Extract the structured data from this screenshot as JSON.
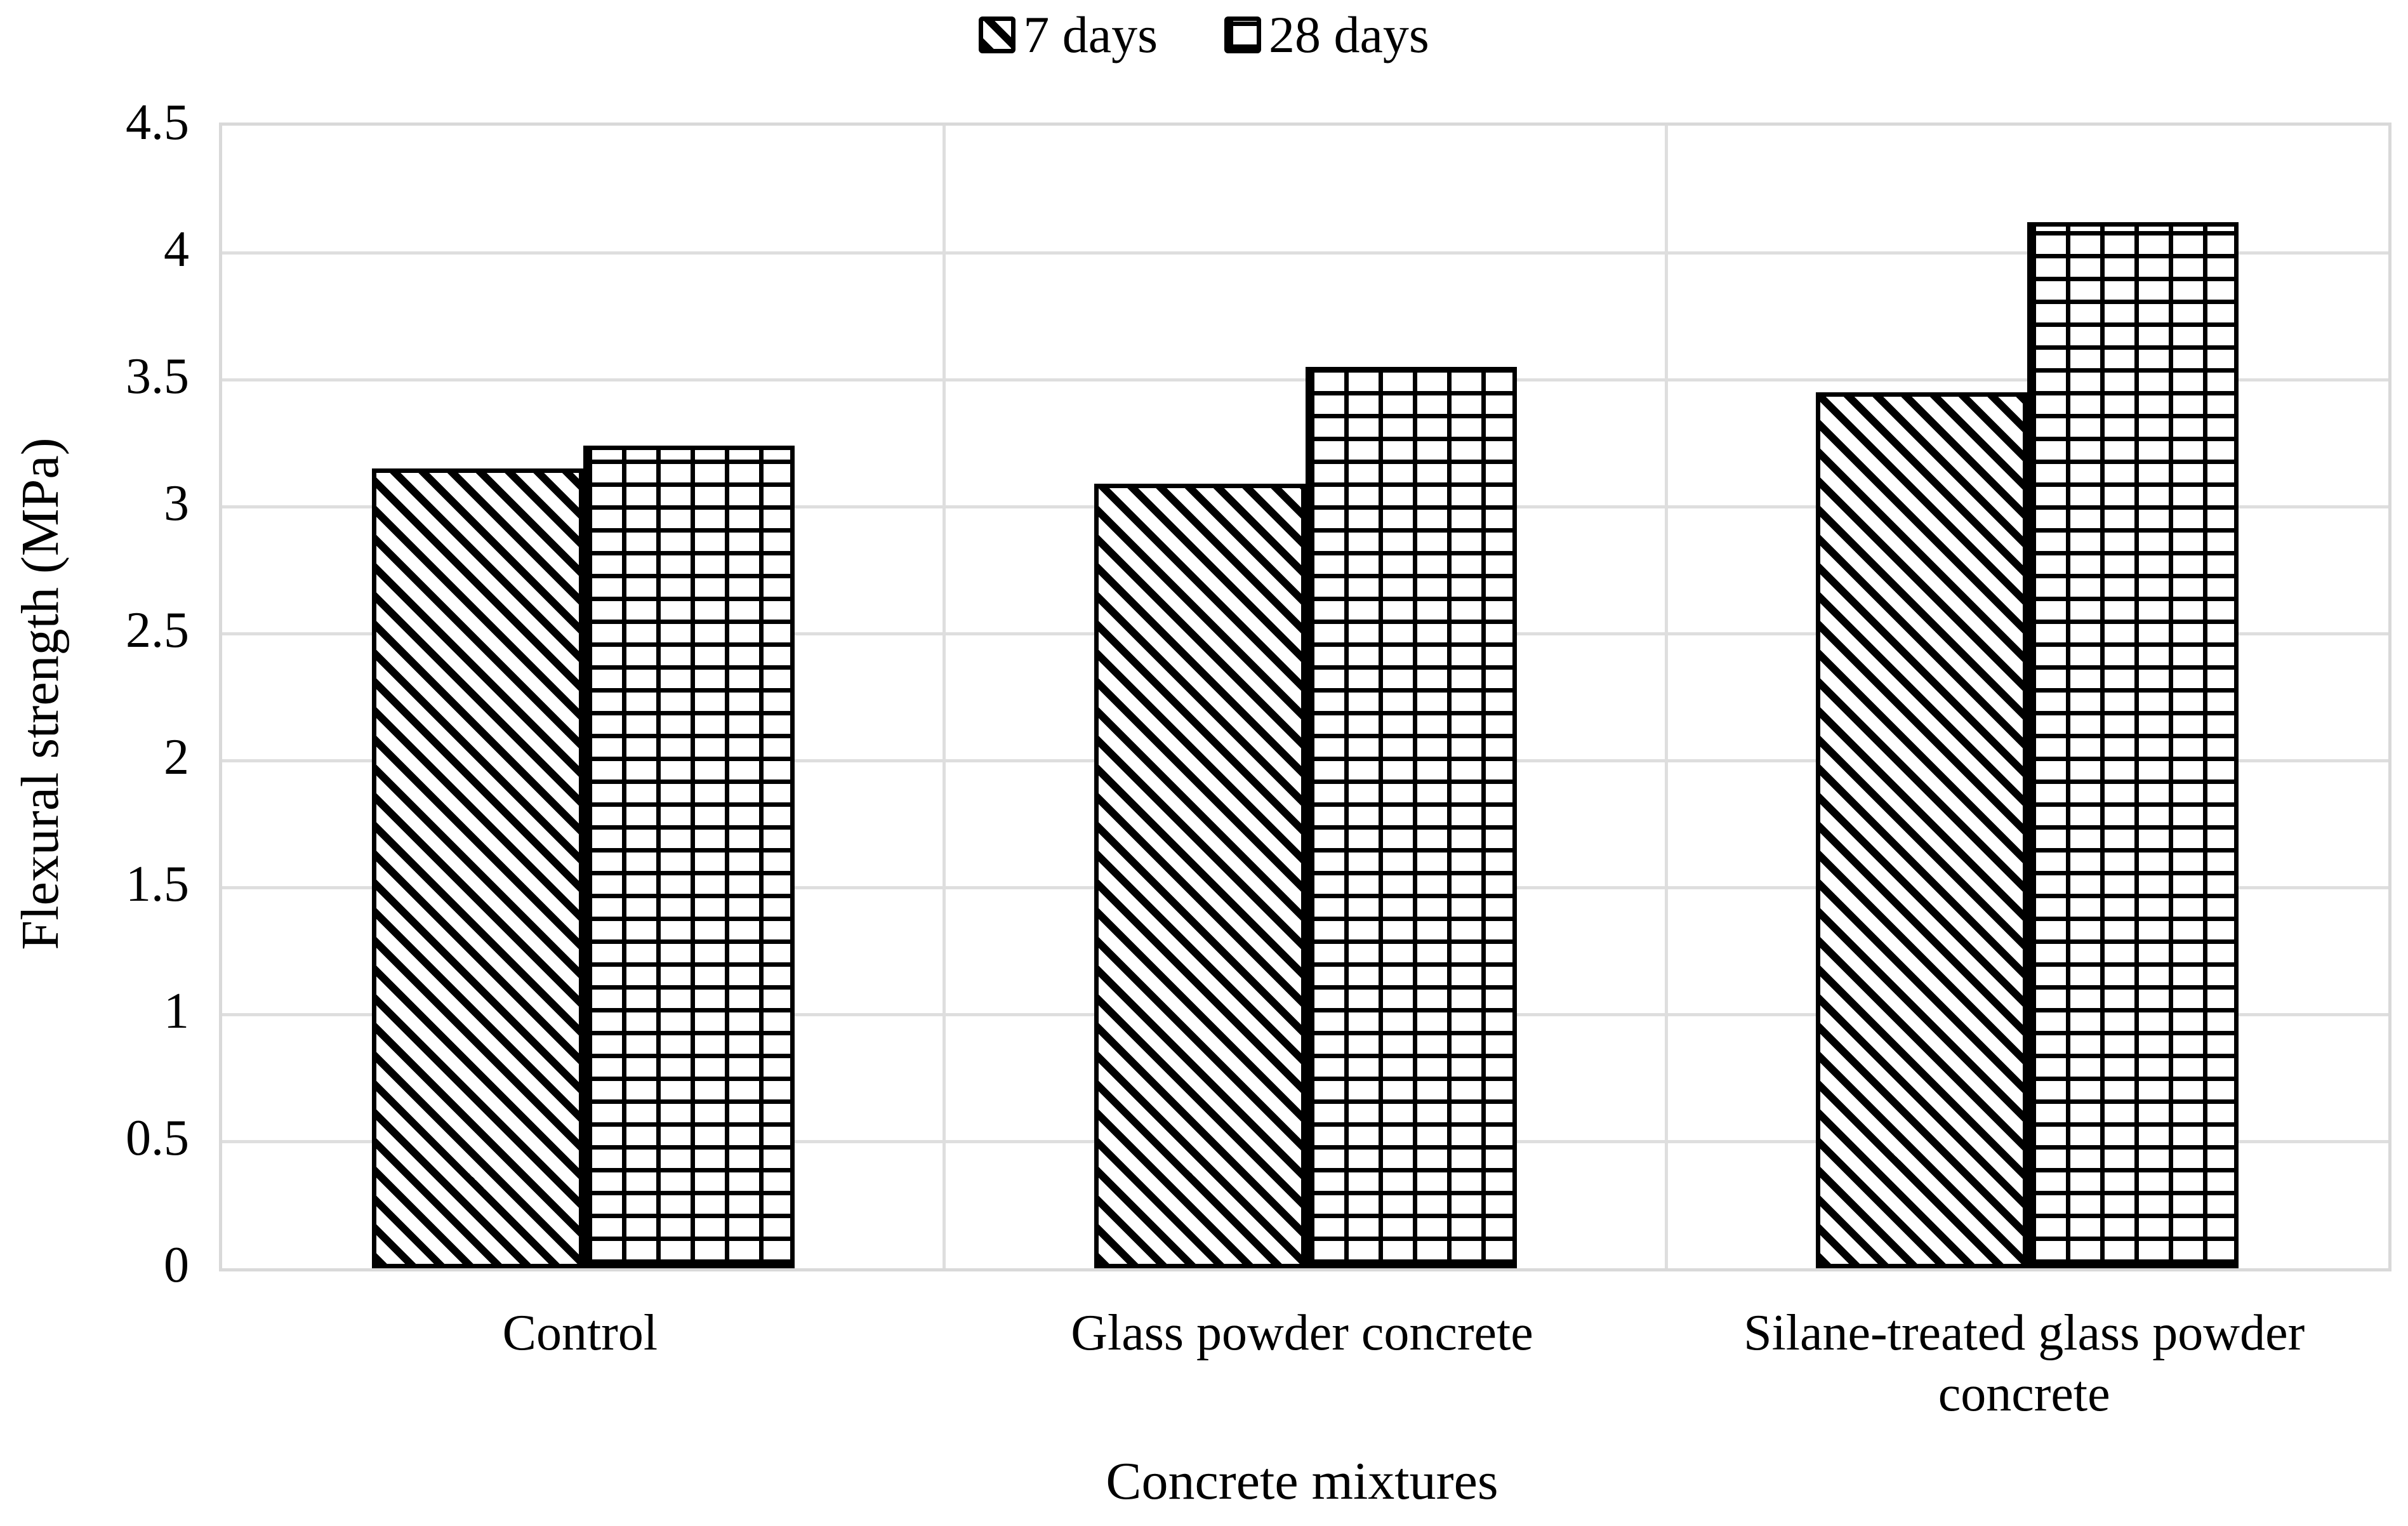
{
  "chart_data": {
    "type": "bar",
    "title": "",
    "xlabel": "Concrete mixtures",
    "ylabel": "Flexural strength (MPa)",
    "ylim": [
      0,
      4.5
    ],
    "ytick_step": 0.5,
    "yticks": [
      "4.5",
      "4",
      "3.5",
      "3",
      "2.5",
      "2",
      "1.5",
      "1",
      "0.5",
      "0"
    ],
    "categories": [
      "Control",
      "Glass powder concrete",
      "Silane-treated glass powder concrete"
    ],
    "series": [
      {
        "name": "7 days",
        "pattern": "diagonal-hatch",
        "swatch_icon": "diagonal-hatch-swatch",
        "values": [
          3.15,
          3.09,
          3.45
        ]
      },
      {
        "name": "28 days",
        "pattern": "grid-hatch",
        "swatch_icon": "grid-hatch-swatch",
        "values": [
          3.24,
          3.55,
          4.12
        ]
      }
    ],
    "legend_position": "top-center",
    "grid": true
  },
  "styles": {
    "background": "#ffffff",
    "bar_fill": "#ffffff",
    "bar_stroke": "#000000",
    "gridline_color": "#dedede",
    "plot_border_color": "#d9d9d9",
    "text_color": "#000000"
  }
}
